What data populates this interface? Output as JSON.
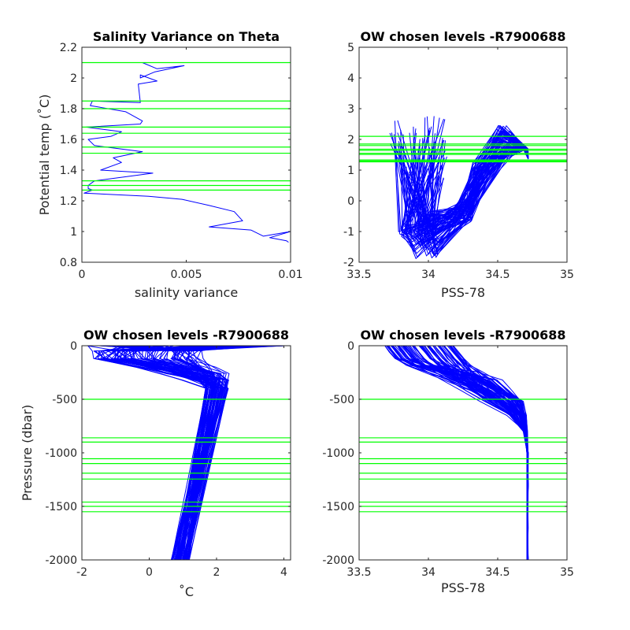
{
  "colors": {
    "profile": "#0000ff",
    "level": "#00ff00",
    "axis": "#262626"
  },
  "chart_data": [
    {
      "type": "line",
      "title": "Salinity Variance on Theta",
      "xlabel": "salinity variance",
      "ylabel": "Potential temp (˚C)",
      "xlim": [
        0,
        0.01
      ],
      "ylim": [
        0.8,
        2.2
      ],
      "xticks": [
        "0",
        "0.005",
        "0.01"
      ],
      "xtick_values": [
        0,
        0.005,
        0.01
      ],
      "yticks": [
        "0.8",
        "1",
        "1.2",
        "1.4",
        "1.6",
        "1.8",
        "2",
        "2.2"
      ],
      "ytick_values": [
        0.8,
        1.0,
        1.2,
        1.4,
        1.6,
        1.8,
        2.0,
        2.2
      ],
      "series": [
        {
          "x": [
            0.0034,
            0.0029,
            0.0036,
            0.0049,
            0.0035,
            0.0028,
            0.0028,
            0.0036,
            0.0027,
            0.0028,
            0.0005,
            0.0004,
            0.0021,
            0.0029,
            0.0028,
            0.0002,
            0.0019,
            0.0014,
            0.0003,
            0.0006,
            0.0029,
            0.0015,
            0.0019,
            0.0009,
            0.0034,
            0.0006,
            0.0003,
            0.0003,
            0.0005,
            0.0001,
            0.0032,
            0.0048,
            0.0061,
            0.0073,
            0.0077,
            0.0061,
            0.0081,
            0.0087,
            0.01,
            0.009,
            0.0098,
            0.0099
          ],
          "y": [
            2.1,
            2.1,
            2.06,
            2.08,
            2.04,
            2.0,
            2.02,
            1.98,
            1.96,
            1.84,
            1.85,
            1.82,
            1.78,
            1.72,
            1.7,
            1.68,
            1.65,
            1.62,
            1.6,
            1.56,
            1.52,
            1.48,
            1.45,
            1.4,
            1.38,
            1.33,
            1.3,
            1.28,
            1.27,
            1.25,
            1.23,
            1.21,
            1.17,
            1.13,
            1.07,
            1.03,
            1.01,
            0.97,
            1.0,
            0.96,
            0.94,
            0.93
          ]
        }
      ],
      "levels": [
        2.1,
        1.85,
        1.8,
        1.68,
        1.64,
        1.55,
        1.51,
        1.33,
        1.3,
        1.27
      ]
    },
    {
      "type": "line",
      "title": "OW chosen levels -R7900688",
      "xlabel": "PSS-78",
      "xlim": [
        33.5,
        35
      ],
      "ylim": [
        -2,
        5
      ],
      "xticks": [
        "33.5",
        "34",
        "34.5",
        "35"
      ],
      "xtick_values": [
        33.5,
        34.0,
        34.5,
        35.0
      ],
      "yticks": [
        "-2",
        "-1",
        "0",
        "1",
        "2",
        "3",
        "4",
        "5"
      ],
      "ytick_values": [
        -2,
        -1,
        0,
        1,
        2,
        3,
        4,
        5
      ],
      "levels": [
        2.1,
        1.85,
        1.8,
        1.68,
        1.64,
        1.55,
        1.51,
        1.33,
        1.3,
        1.27
      ],
      "profile_count": 80
    },
    {
      "type": "line",
      "title": "OW chosen levels -R7900688",
      "xlabel": "˚C",
      "ylabel": "Pressure (dbar)",
      "xlim": [
        -2,
        4.2
      ],
      "ylim": [
        -2000,
        0
      ],
      "xticks": [
        "-2",
        "0",
        "2",
        "4"
      ],
      "xtick_values": [
        -2,
        0,
        2,
        4
      ],
      "yticks": [
        "-2000",
        "-1500",
        "-1000",
        "-500",
        "0"
      ],
      "ytick_values": [
        -2000,
        -1500,
        -1000,
        -500,
        0
      ],
      "levels": [
        -500,
        -860,
        -900,
        -1055,
        -1100,
        -1190,
        -1245,
        -1460,
        -1500,
        -1550
      ],
      "profile_count": 80
    },
    {
      "type": "line",
      "title": "OW chosen levels -R7900688",
      "xlabel": "PSS-78",
      "xlim": [
        33.5,
        35
      ],
      "ylim": [
        -2000,
        0
      ],
      "xticks": [
        "33.5",
        "34",
        "34.5",
        "35"
      ],
      "xtick_values": [
        33.5,
        34.0,
        34.5,
        35.0
      ],
      "yticks": [
        "-2000",
        "-1500",
        "-1000",
        "-500",
        "0"
      ],
      "ytick_values": [
        -2000,
        -1500,
        -1000,
        -500,
        0
      ],
      "levels": [
        -500,
        -860,
        -900,
        -1055,
        -1100,
        -1190,
        -1245,
        -1460,
        -1500,
        -1550
      ],
      "profile_count": 80
    }
  ]
}
